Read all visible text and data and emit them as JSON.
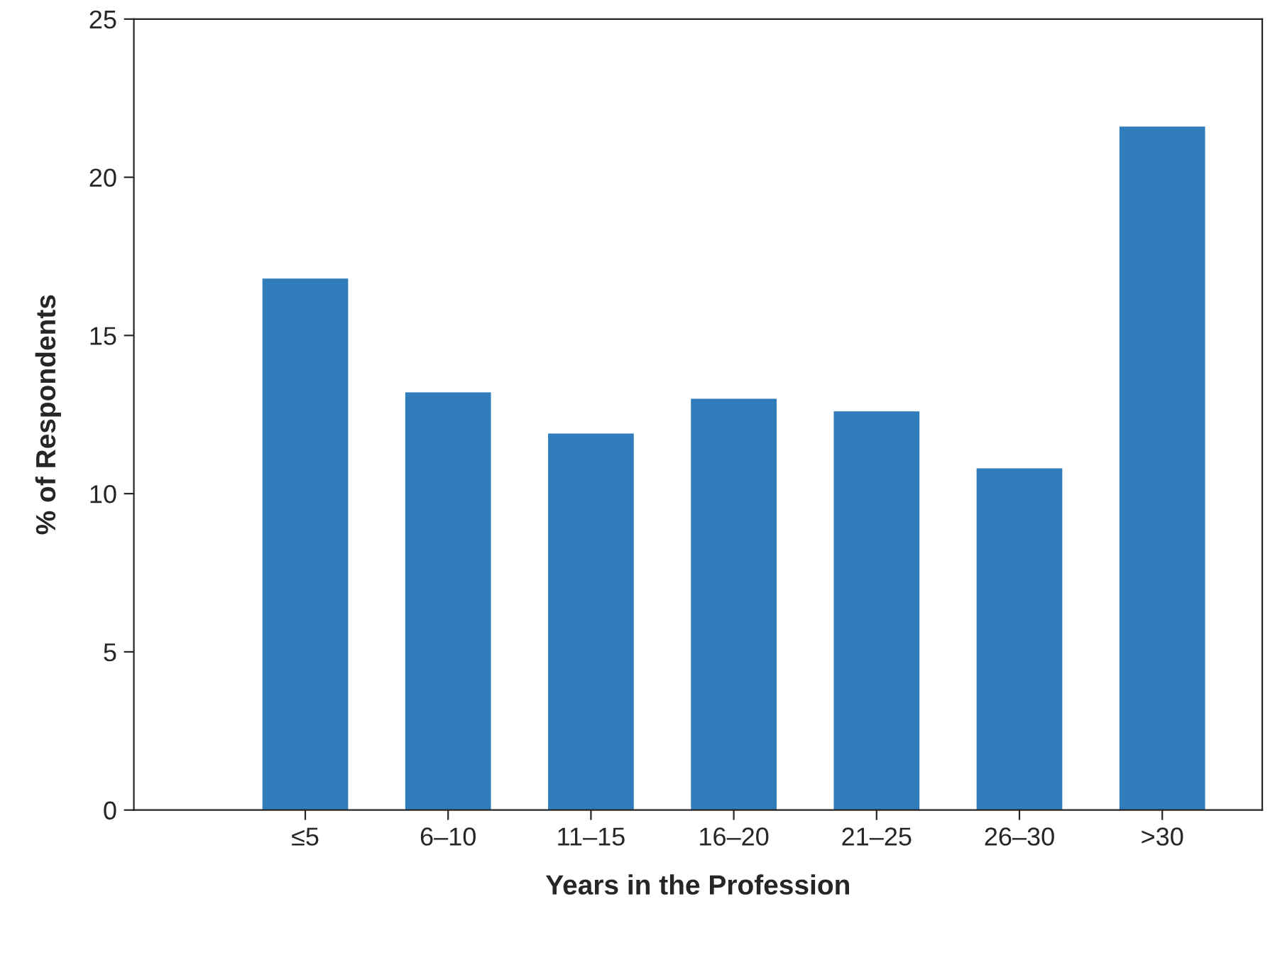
{
  "chart_data": {
    "type": "bar",
    "xlabel": "Years in the Profession",
    "ylabel": "% of Respondents",
    "categories": [
      "≤5",
      "6–10",
      "11–15",
      "16–20",
      "21–25",
      "26–30",
      ">30"
    ],
    "values": [
      16.8,
      13.2,
      11.9,
      13.0,
      12.6,
      10.8,
      21.6
    ],
    "color": "#317dbb",
    "ylim": [
      0,
      25
    ],
    "yticks": [
      0,
      5,
      10,
      15,
      20,
      25
    ],
    "grid": false,
    "legend": false
  }
}
